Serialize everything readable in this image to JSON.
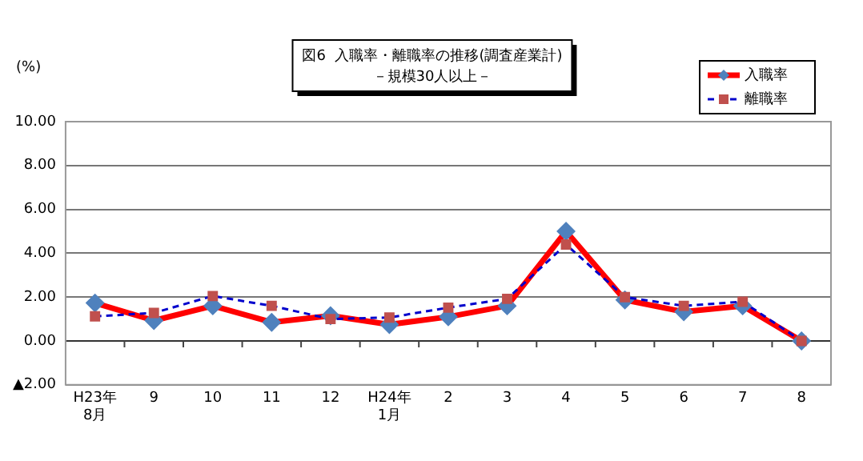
{
  "chart_data": {
    "type": "line",
    "title": "図6  入職率・離職率の推移(調査産業計)",
    "subtitle": "－規模30人以上－",
    "ylabel": "(%)",
    "categories": [
      "H23年\n8月",
      "9",
      "10",
      "11",
      "12",
      "H24年\n1月",
      "2",
      "3",
      "4",
      "5",
      "6",
      "7",
      "8"
    ],
    "series": [
      {
        "name": "入職率",
        "color": "#ff0000",
        "marker": "diamond",
        "line_style": "solid",
        "values": [
          1.73,
          0.93,
          1.6,
          0.85,
          1.15,
          0.75,
          1.1,
          1.6,
          5.0,
          1.87,
          1.33,
          1.6,
          0
        ]
      },
      {
        "name": "離職率",
        "color": "#0000cc",
        "marker": "square",
        "line_style": "dashed",
        "values": [
          1.12,
          1.28,
          2.05,
          1.6,
          1.0,
          1.07,
          1.52,
          1.92,
          4.4,
          2.0,
          1.6,
          1.79,
          0
        ]
      }
    ],
    "ylim": [
      -2,
      10
    ],
    "yticks": [
      {
        "value": -2,
        "label": "▲2.00"
      },
      {
        "value": 0,
        "label": "0.00"
      },
      {
        "value": 2,
        "label": "2.00"
      },
      {
        "value": 4,
        "label": "4.00"
      },
      {
        "value": 6,
        "label": "6.00"
      },
      {
        "value": 8,
        "label": "8.00"
      },
      {
        "value": 10,
        "label": "10.00"
      }
    ],
    "grid": "y",
    "legend": "top right"
  }
}
